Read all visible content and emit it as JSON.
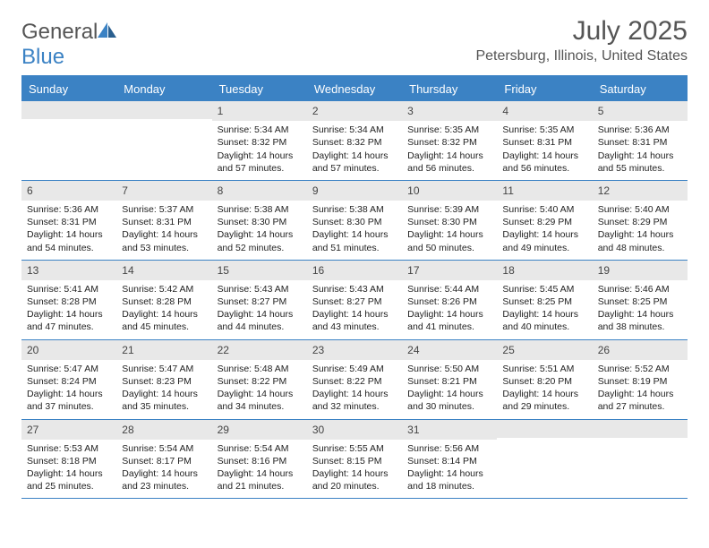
{
  "logo": {
    "text1": "General",
    "text2": "Blue"
  },
  "title": "July 2025",
  "location": "Petersburg, Illinois, United States",
  "colors": {
    "accent": "#3b82c4",
    "header_bg": "#3b82c4",
    "header_text": "#ffffff",
    "daynum_bg": "#e8e8e8",
    "text": "#333333",
    "rule": "#3b82c4"
  },
  "day_names": [
    "Sunday",
    "Monday",
    "Tuesday",
    "Wednesday",
    "Thursday",
    "Friday",
    "Saturday"
  ],
  "weeks": [
    [
      null,
      null,
      {
        "n": "1",
        "sr": "Sunrise: 5:34 AM",
        "ss": "Sunset: 8:32 PM",
        "dl": "Daylight: 14 hours and 57 minutes."
      },
      {
        "n": "2",
        "sr": "Sunrise: 5:34 AM",
        "ss": "Sunset: 8:32 PM",
        "dl": "Daylight: 14 hours and 57 minutes."
      },
      {
        "n": "3",
        "sr": "Sunrise: 5:35 AM",
        "ss": "Sunset: 8:32 PM",
        "dl": "Daylight: 14 hours and 56 minutes."
      },
      {
        "n": "4",
        "sr": "Sunrise: 5:35 AM",
        "ss": "Sunset: 8:31 PM",
        "dl": "Daylight: 14 hours and 56 minutes."
      },
      {
        "n": "5",
        "sr": "Sunrise: 5:36 AM",
        "ss": "Sunset: 8:31 PM",
        "dl": "Daylight: 14 hours and 55 minutes."
      }
    ],
    [
      {
        "n": "6",
        "sr": "Sunrise: 5:36 AM",
        "ss": "Sunset: 8:31 PM",
        "dl": "Daylight: 14 hours and 54 minutes."
      },
      {
        "n": "7",
        "sr": "Sunrise: 5:37 AM",
        "ss": "Sunset: 8:31 PM",
        "dl": "Daylight: 14 hours and 53 minutes."
      },
      {
        "n": "8",
        "sr": "Sunrise: 5:38 AM",
        "ss": "Sunset: 8:30 PM",
        "dl": "Daylight: 14 hours and 52 minutes."
      },
      {
        "n": "9",
        "sr": "Sunrise: 5:38 AM",
        "ss": "Sunset: 8:30 PM",
        "dl": "Daylight: 14 hours and 51 minutes."
      },
      {
        "n": "10",
        "sr": "Sunrise: 5:39 AM",
        "ss": "Sunset: 8:30 PM",
        "dl": "Daylight: 14 hours and 50 minutes."
      },
      {
        "n": "11",
        "sr": "Sunrise: 5:40 AM",
        "ss": "Sunset: 8:29 PM",
        "dl": "Daylight: 14 hours and 49 minutes."
      },
      {
        "n": "12",
        "sr": "Sunrise: 5:40 AM",
        "ss": "Sunset: 8:29 PM",
        "dl": "Daylight: 14 hours and 48 minutes."
      }
    ],
    [
      {
        "n": "13",
        "sr": "Sunrise: 5:41 AM",
        "ss": "Sunset: 8:28 PM",
        "dl": "Daylight: 14 hours and 47 minutes."
      },
      {
        "n": "14",
        "sr": "Sunrise: 5:42 AM",
        "ss": "Sunset: 8:28 PM",
        "dl": "Daylight: 14 hours and 45 minutes."
      },
      {
        "n": "15",
        "sr": "Sunrise: 5:43 AM",
        "ss": "Sunset: 8:27 PM",
        "dl": "Daylight: 14 hours and 44 minutes."
      },
      {
        "n": "16",
        "sr": "Sunrise: 5:43 AM",
        "ss": "Sunset: 8:27 PM",
        "dl": "Daylight: 14 hours and 43 minutes."
      },
      {
        "n": "17",
        "sr": "Sunrise: 5:44 AM",
        "ss": "Sunset: 8:26 PM",
        "dl": "Daylight: 14 hours and 41 minutes."
      },
      {
        "n": "18",
        "sr": "Sunrise: 5:45 AM",
        "ss": "Sunset: 8:25 PM",
        "dl": "Daylight: 14 hours and 40 minutes."
      },
      {
        "n": "19",
        "sr": "Sunrise: 5:46 AM",
        "ss": "Sunset: 8:25 PM",
        "dl": "Daylight: 14 hours and 38 minutes."
      }
    ],
    [
      {
        "n": "20",
        "sr": "Sunrise: 5:47 AM",
        "ss": "Sunset: 8:24 PM",
        "dl": "Daylight: 14 hours and 37 minutes."
      },
      {
        "n": "21",
        "sr": "Sunrise: 5:47 AM",
        "ss": "Sunset: 8:23 PM",
        "dl": "Daylight: 14 hours and 35 minutes."
      },
      {
        "n": "22",
        "sr": "Sunrise: 5:48 AM",
        "ss": "Sunset: 8:22 PM",
        "dl": "Daylight: 14 hours and 34 minutes."
      },
      {
        "n": "23",
        "sr": "Sunrise: 5:49 AM",
        "ss": "Sunset: 8:22 PM",
        "dl": "Daylight: 14 hours and 32 minutes."
      },
      {
        "n": "24",
        "sr": "Sunrise: 5:50 AM",
        "ss": "Sunset: 8:21 PM",
        "dl": "Daylight: 14 hours and 30 minutes."
      },
      {
        "n": "25",
        "sr": "Sunrise: 5:51 AM",
        "ss": "Sunset: 8:20 PM",
        "dl": "Daylight: 14 hours and 29 minutes."
      },
      {
        "n": "26",
        "sr": "Sunrise: 5:52 AM",
        "ss": "Sunset: 8:19 PM",
        "dl": "Daylight: 14 hours and 27 minutes."
      }
    ],
    [
      {
        "n": "27",
        "sr": "Sunrise: 5:53 AM",
        "ss": "Sunset: 8:18 PM",
        "dl": "Daylight: 14 hours and 25 minutes."
      },
      {
        "n": "28",
        "sr": "Sunrise: 5:54 AM",
        "ss": "Sunset: 8:17 PM",
        "dl": "Daylight: 14 hours and 23 minutes."
      },
      {
        "n": "29",
        "sr": "Sunrise: 5:54 AM",
        "ss": "Sunset: 8:16 PM",
        "dl": "Daylight: 14 hours and 21 minutes."
      },
      {
        "n": "30",
        "sr": "Sunrise: 5:55 AM",
        "ss": "Sunset: 8:15 PM",
        "dl": "Daylight: 14 hours and 20 minutes."
      },
      {
        "n": "31",
        "sr": "Sunrise: 5:56 AM",
        "ss": "Sunset: 8:14 PM",
        "dl": "Daylight: 14 hours and 18 minutes."
      },
      null,
      null
    ]
  ]
}
